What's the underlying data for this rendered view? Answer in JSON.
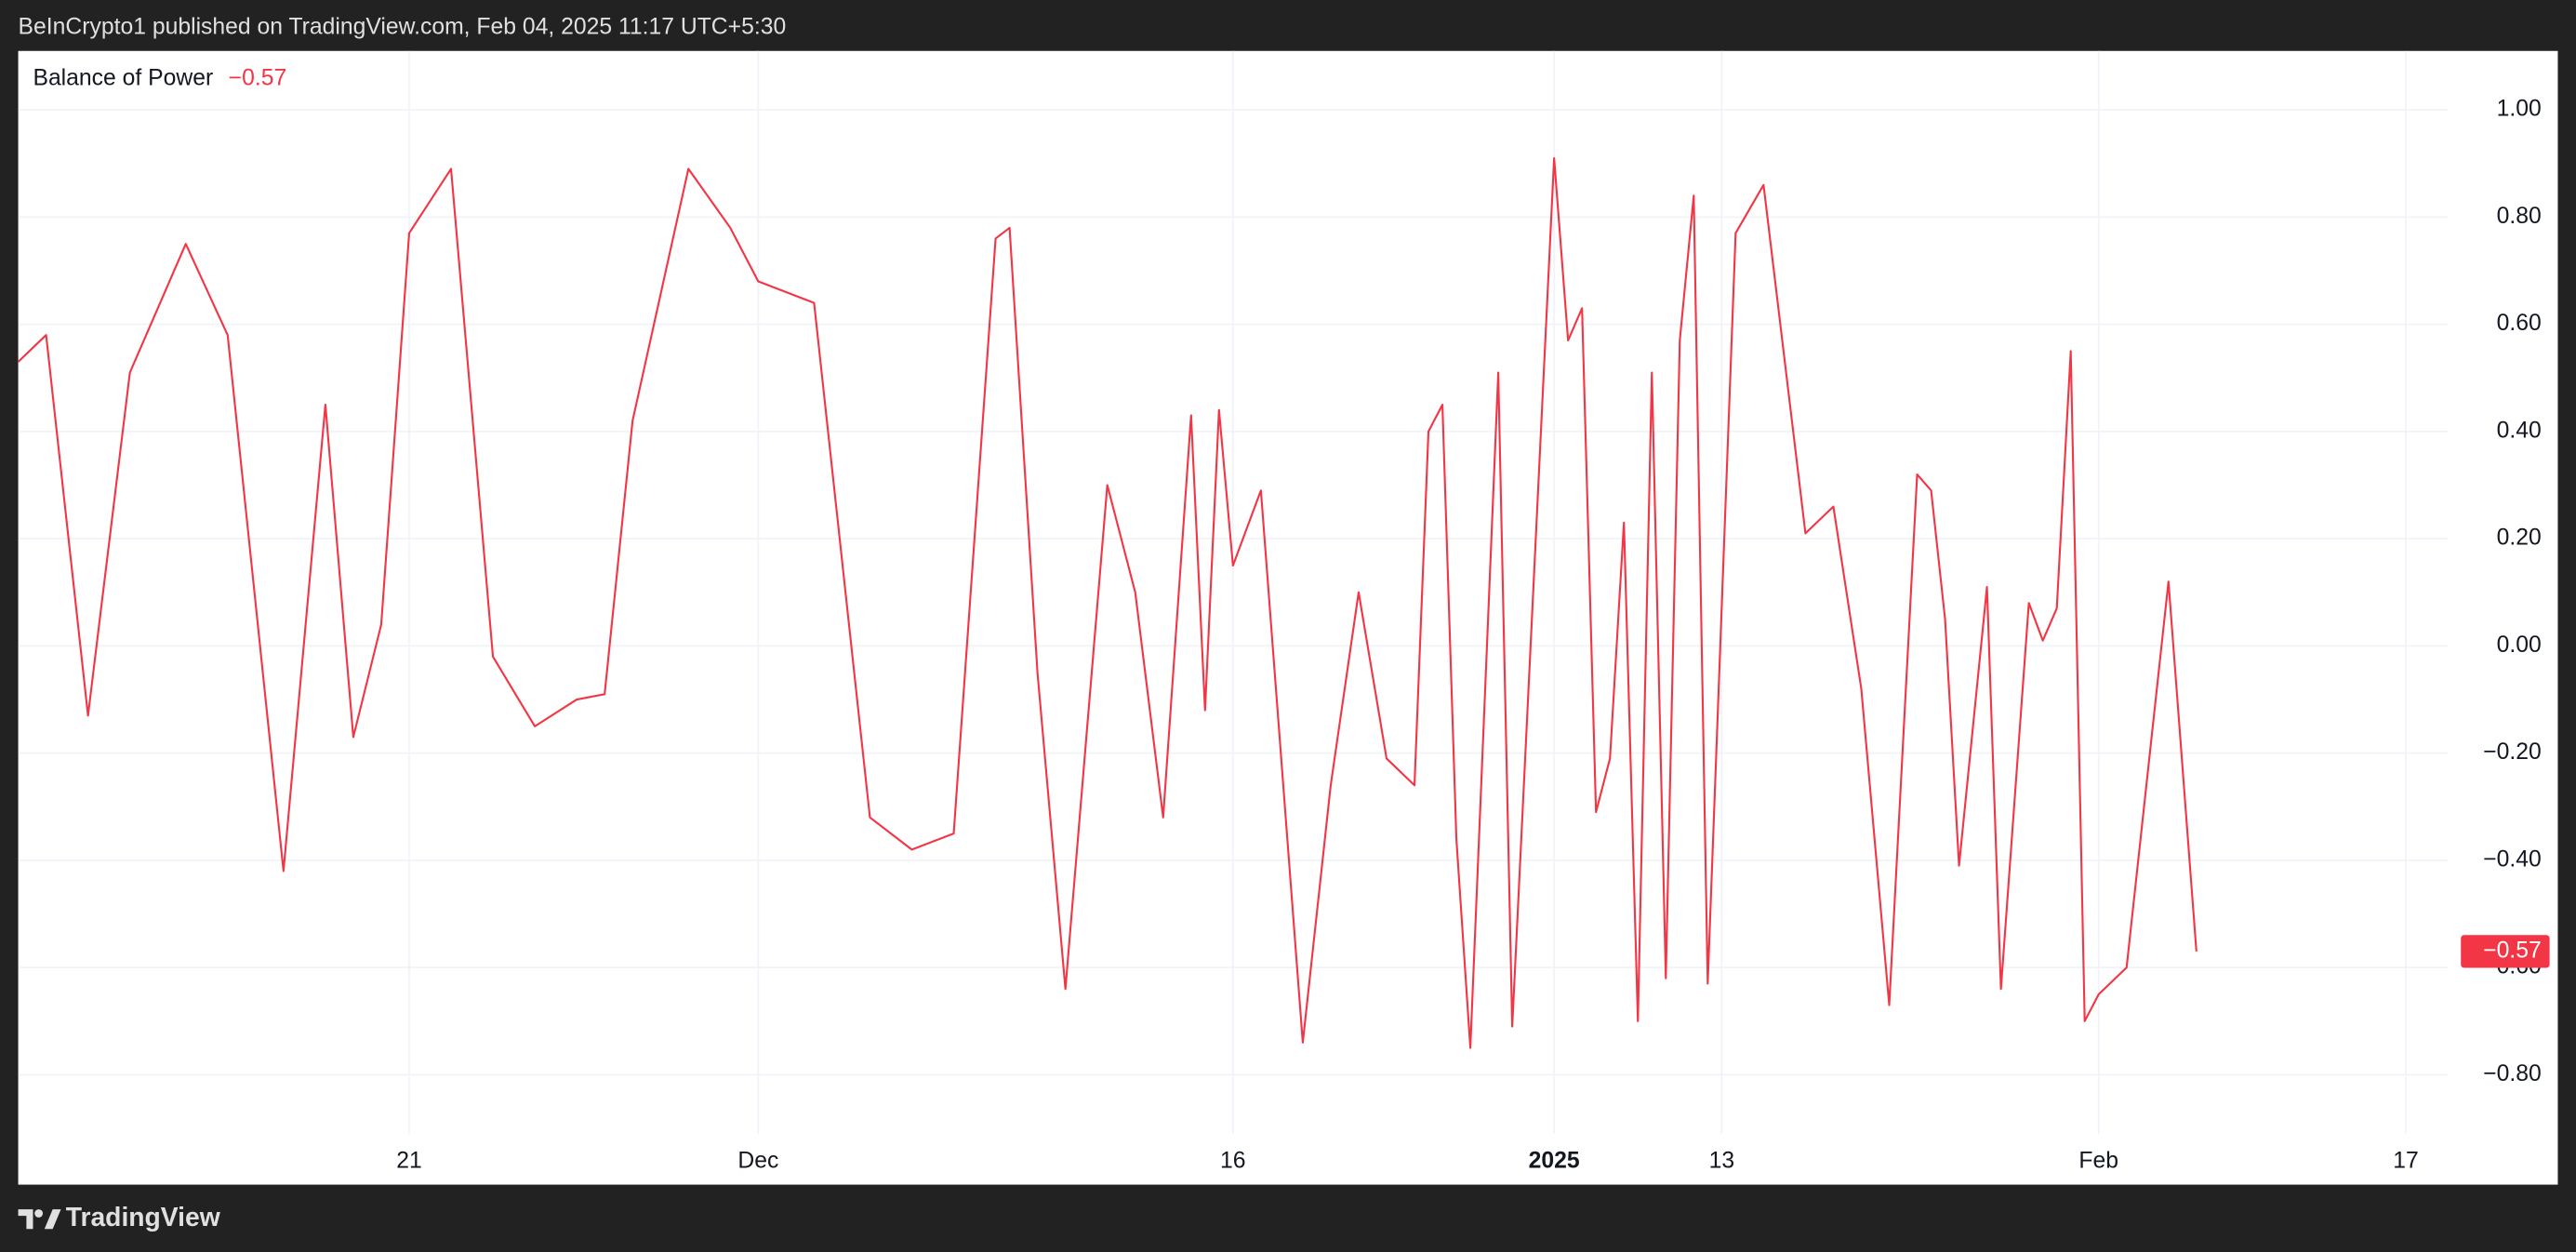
{
  "header": "BeInCrypto1 published on TradingView.com, Feb 04, 2025 11:17 UTC+5:30",
  "footer": "TradingView",
  "chart_data": {
    "type": "line",
    "last_value_label": "−0.57",
    "x": [
      0,
      2,
      5,
      8,
      12,
      15,
      19,
      22,
      24,
      26,
      28,
      31,
      34,
      37,
      40,
      42,
      44,
      48,
      51,
      53,
      57,
      61,
      64,
      67,
      70,
      71,
      73,
      75,
      78,
      80,
      82,
      84,
      85,
      86,
      87,
      89,
      92,
      94,
      96,
      98,
      100,
      101,
      102,
      103,
      104,
      106,
      107,
      110,
      111,
      112,
      113,
      114,
      115,
      116,
      117,
      118,
      119,
      120,
      121,
      123,
      125,
      128,
      130,
      132,
      134,
      136,
      137,
      138,
      139,
      141,
      142,
      144,
      145,
      146,
      147,
      148,
      149,
      151,
      154,
      156
    ],
    "series": [
      {
        "name": "Balance of Power",
        "color": "#f23645",
        "values": [
          0.53,
          0.58,
          -0.13,
          0.51,
          0.75,
          0.58,
          -0.42,
          0.45,
          -0.17,
          0.04,
          0.77,
          0.89,
          -0.02,
          -0.15,
          -0.1,
          -0.09,
          0.42,
          0.89,
          0.78,
          0.68,
          0.64,
          -0.32,
          -0.38,
          -0.35,
          0.76,
          0.78,
          -0.05,
          -0.64,
          0.3,
          0.1,
          -0.32,
          0.43,
          -0.12,
          0.44,
          0.15,
          0.29,
          -0.74,
          -0.26,
          0.1,
          -0.21,
          -0.26,
          0.4,
          0.45,
          -0.36,
          -0.75,
          0.51,
          -0.71,
          0.91,
          0.57,
          0.63,
          -0.31,
          -0.21,
          0.23,
          -0.7,
          0.51,
          -0.62,
          0.57,
          0.84,
          -0.63,
          0.77,
          0.86,
          0.21,
          0.26,
          -0.08,
          -0.67,
          0.32,
          0.29,
          0.05,
          -0.41,
          0.11,
          -0.64,
          0.08,
          0.01,
          0.07,
          0.55,
          -0.7,
          -0.65,
          -0.6,
          0.12,
          -0.57
        ]
      }
    ],
    "xlim": [
      0,
      174
    ],
    "xticks": [
      {
        "value": 28,
        "label": "21"
      },
      {
        "value": 53,
        "label": "Dec"
      },
      {
        "value": 87,
        "label": "16"
      },
      {
        "value": 110,
        "label": "2025"
      },
      {
        "value": 122,
        "label": "13"
      },
      {
        "value": 149,
        "label": "Feb"
      },
      {
        "value": 171,
        "label": "17"
      }
    ],
    "ylim": [
      -0.91,
      1.11
    ],
    "yticks": [
      {
        "value": 1,
        "label": "1.00"
      },
      {
        "value": 0.8,
        "label": "0.80"
      },
      {
        "value": 0.6,
        "label": "0.60"
      },
      {
        "value": 0.4,
        "label": "0.40"
      },
      {
        "value": 0.2,
        "label": "0.20"
      },
      {
        "value": 0,
        "label": "0.00"
      },
      {
        "value": -0.2,
        "label": "−0.20"
      },
      {
        "value": -0.4,
        "label": "−0.40"
      },
      {
        "value": -0.6,
        "label": "−0.60"
      },
      {
        "value": -0.8,
        "label": "−0.80"
      }
    ],
    "grid": true
  }
}
